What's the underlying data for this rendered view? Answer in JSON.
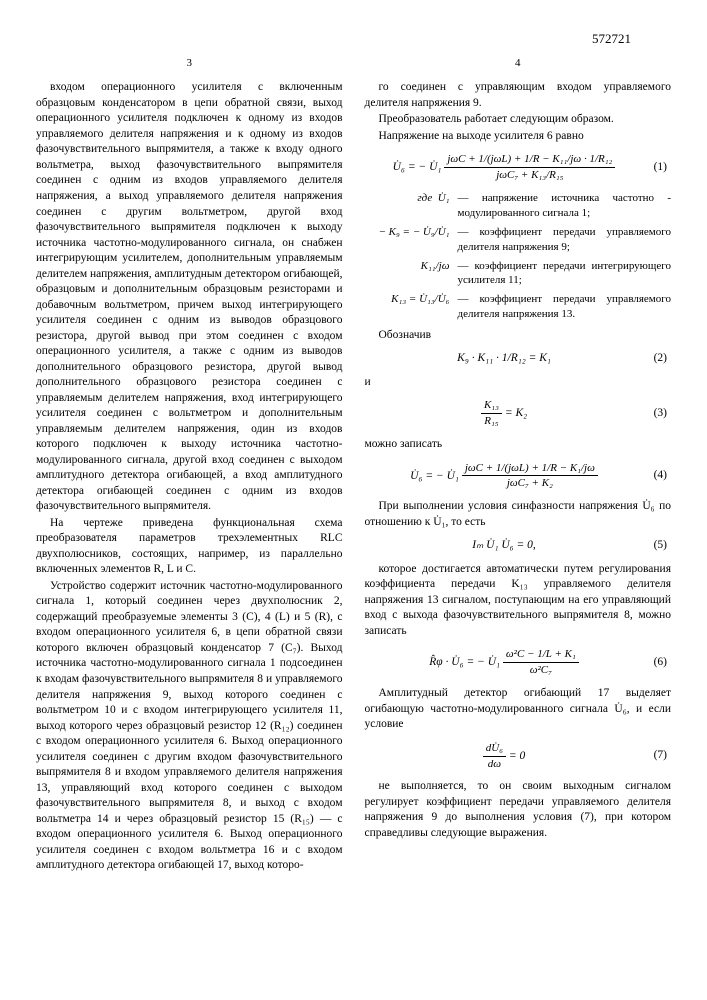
{
  "doc_number": "572721",
  "col_left_num": "3",
  "col_right_num": "4",
  "left_para": "входом операционного усилителя с включенным образцовым конденсатором в цепи обратной связи, выход операционного усилителя подключен к одному из входов управляемого делителя напряжения и к одному из входов фазочувствительного выпрямителя, а также к входу одного вольтметра, выход фазочувствительного выпрямителя соединен с одним из входов управляемого делителя напряжения, а выход управляемого делителя напряжения соединен с другим вольтметром, другой вход фазочувствительного выпрямителя подключен к выходу источника частотно-модулированного сигнала, он снабжен интегрирующим усилителем, дополнительным управляемым делителем напряжения, амплитудным детектором огибающей, образцовым и дополнительным образцовым резисторами и добавочным вольтметром, причем выход интегрирующего усилителя соединен с одним из выводов образцового резистора, другой вывод при этом соединен с входом операционного усилителя, а также с одним из выводов дополнительного образцового резистора, другой вывод дополнительного образцового резистора соединен с управляемым делителем напряжения, вход интегрирующего усилителя соединен с вольтметром и дополнительным управляемым делителем напряжения, один из входов которого подключен к выходу источника частотно-модулированного сигнала, другой вход соединен с выходом амплитудного детектора огибающей, а вход амплитудного детектора огибающей соединен с одним из входов фазочувствительного выпрямителя.",
  "left_para2": "На чертеже приведена функциональная схема преобразователя параметров трехэлементных RLC двухполюсников, состоящих, например, из параллельно включенных элементов R, L и С.",
  "left_para3": "Устройство содержит источник частотно-модулированного сигнала 1, который соединен через двухполюсник 2, содержащий преобразуемые элементы 3 (C), 4 (L) и 5 (R), с входом операционного усилителя 6, в цепи обратной связи которого включен образцовый конденсатор 7 (C₇). Выход источника частотно-модулированного сигнала 1 подсоединен к входам фазочувствительного выпрямителя 8 и управляемого делителя напряжения 9, выход которого соединен с вольтметром 10 и с входом интегрирующего усилителя 11, выход которого через образцовый резистор 12 (R₁₂) соединен с входом операционного усилителя 6. Выход операционного усилителя соединен с другим входом фазочувствительного выпрямителя 8 и входом управляемого делителя напряжения 13, управляющий вход которого соединен с выходом фазочувствительного выпрямителя 8, и выход с входом вольтметра 14 и через образцовый резистор 15 (R₁₅) — с входом операционного усилителя 6. Выход операционного усилителя соединен с входом вольтметра 16 и с входом амплитудного детектора огибающей 17, выход которо-",
  "right_para1": "го соединен с управляющим входом управляемого делителя напряжения 9.",
  "right_para2": "Преобразователь работает следующим образом.",
  "right_para3": "Напряжение на выходе усилителя 6 равно",
  "eq1_left": "U̇₆ = − U̇₁",
  "eq1_num": "jωC + 1/(jωL) + 1/R − K₁₁/jω · 1/R₁₂",
  "eq1_den": "jωC₇ + K₁₃/R₁₅",
  "eq1_no": "(1)",
  "where_label": "где",
  "w1_l": "U̇₁",
  "w1_r": "— напряжение источника частотно - модулированного сигнала 1;",
  "w2_l": "− K₉ = − U̇₉/U̇₁",
  "w2_r": "— коэффициент передачи управляемого делителя напряжения 9;",
  "w3_l": "K₁₁/jω",
  "w3_r": "— коэффициент передачи интегрирующего усилителя 11;",
  "w4_l": "K₁₃ = U̇₁₃/U̇₆",
  "w4_r": "— коэффициент передачи управляемого делителя напряжения 13.",
  "oboznach": "Обозначив",
  "eq2": "K₉ · K₁₁ · 1/R₁₂ = K₁",
  "eq2_no": "(2)",
  "i_word": "и",
  "eq3": "K₁₃/R₁₅ = K₂",
  "eq3_no": "(3)",
  "mozhno": "можно записать",
  "eq4_left": "U̇₆ = − U̇₁",
  "eq4_num": "jωC + 1/(jωL) + 1/R − K₁/jω",
  "eq4_den": "jωC₇ + K₂",
  "eq4_no": "(4)",
  "right_para4": "При выполнении условия синфазности напряжения U̇₆ по отношению к U̇₁, то есть",
  "eq5": "Iₘ U̇₁ U̇₆ = 0,",
  "eq5_no": "(5)",
  "right_para5": "которое достигается автоматически путем регулирования коэффициента передачи K₁₃ управляемого делителя напряжения 13 сигналом, поступающим на его управляющий вход с выхода фазочувствительного выпрямителя 8, можно записать",
  "eq6_left": "R̂φ · U̇₆ = − U̇₁",
  "eq6_num": "ω²C − 1/L + K₁",
  "eq6_den": "ω²C₇",
  "eq6_no": "(6)",
  "right_para6": "Амплитудный детектор огибающий 17 выделяет огибающую частотно-модулированного сигнала U̇₆, и если условие",
  "eq7": "dU̇₆/dω = 0",
  "eq7_no": "(7)",
  "right_para7": "не выполняется, то он своим выходным сигналом регулирует коэффициент передачи управляемого делителя напряжения 9 до выполнения условия (7), при котором справедливы следующие выражения.",
  "line_nums": [
    "5",
    "10",
    "15",
    "20",
    "25",
    "30",
    "35",
    "40",
    "45",
    "50",
    "55",
    "60",
    "65"
  ]
}
